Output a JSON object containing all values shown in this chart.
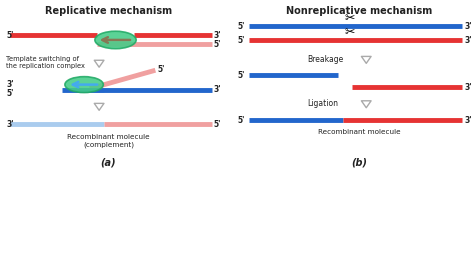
{
  "title_left": "Replicative mechanism",
  "title_right": "Nonreplicative mechanism",
  "label_a": "(a)",
  "label_b": "(b)",
  "red_color": "#e63333",
  "blue_color": "#2266cc",
  "pink_color": "#f0a0a0",
  "light_blue_color": "#aaccee",
  "green_circle_color": "#44cc88",
  "green_circle_edge": "#22aa66",
  "bg_color": "#ffffff",
  "text_color": "#222222"
}
